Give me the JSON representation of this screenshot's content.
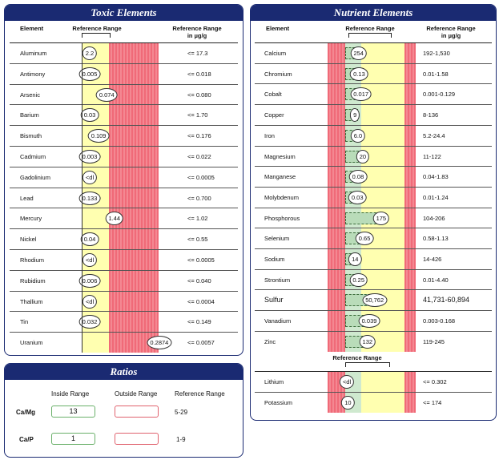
{
  "toxic": {
    "title": "Toxic Elements",
    "col_element": "Element",
    "col_range": "Reference Range",
    "col_ref": "Reference Range",
    "col_ref_unit": "in µg/g",
    "rows": [
      {
        "name": "Aluminum",
        "value": "2.2",
        "ref": "<= 17.3",
        "pos": 0.05
      },
      {
        "name": "Antimony",
        "value": "0.005",
        "ref": "<= 0.018",
        "pos": 0.08
      },
      {
        "name": "Arsenic",
        "value": "0.074",
        "ref": "<= 0.080",
        "pos": 0.92
      },
      {
        "name": "Barium",
        "value": "0.03",
        "ref": "<= 1.70",
        "pos": 0.0
      },
      {
        "name": "Bismuth",
        "value": "0.109",
        "ref": "<= 0.176",
        "pos": 0.62
      },
      {
        "name": "Cadmium",
        "value": "0.003",
        "ref": "<= 0.022",
        "pos": 0.14
      },
      {
        "name": "Gadolinium",
        "value": "<dl",
        "ref": "<= 0.0005",
        "pos": 0.0
      },
      {
        "name": "Lead",
        "value": "0.133",
        "ref": "<= 0.700",
        "pos": 0.2
      },
      {
        "name": "Mercury",
        "value": "1.44",
        "ref": "<= 1.02",
        "pos": 1.2
      },
      {
        "name": "Nickel",
        "value": "0.04",
        "ref": "<= 0.55",
        "pos": 0.05
      },
      {
        "name": "Rhodium",
        "value": "<dl",
        "ref": "<= 0.0005",
        "pos": 0.0
      },
      {
        "name": "Rubidium",
        "value": "0.006",
        "ref": "<= 0.040",
        "pos": 0.15
      },
      {
        "name": "Thallium",
        "value": "<dl",
        "ref": "<= 0.0004",
        "pos": 0.0
      },
      {
        "name": "Tin",
        "value": "0.032",
        "ref": "<= 0.149",
        "pos": 0.22
      },
      {
        "name": "Uranium",
        "value": "0.2874",
        "ref": "<= 0.0057",
        "pos": 3.0
      }
    ]
  },
  "nutrient": {
    "title": "Nutrient Elements",
    "col_element": "Element",
    "col_range": "Reference Range",
    "col_ref": "Reference Range",
    "col_ref_unit": "in µg/g",
    "rows": [
      {
        "name": "Calcium",
        "value": "254",
        "ref": "192-1,530",
        "pos": 0.28
      },
      {
        "name": "Chromium",
        "value": "0.13",
        "ref": "0.01-1.58",
        "pos": 0.29
      },
      {
        "name": "Cobalt",
        "value": "0.017",
        "ref": "0.001-0.129",
        "pos": 0.32
      },
      {
        "name": "Copper",
        "value": "9",
        "ref": "8-136",
        "pos": 0.22
      },
      {
        "name": "Iron",
        "value": "6.0",
        "ref": "5.2-24.4",
        "pos": 0.27
      },
      {
        "name": "Magnesium",
        "value": "20",
        "ref": "11-122",
        "pos": 0.35
      },
      {
        "name": "Manganese",
        "value": "0.08",
        "ref": "0.04-1.83",
        "pos": 0.27
      },
      {
        "name": "Molybdenum",
        "value": "0.03",
        "ref": "0.01-1.24",
        "pos": 0.26
      },
      {
        "name": "Phosphorous",
        "value": "175",
        "ref": "104-206",
        "pos": 0.66
      },
      {
        "name": "Selenium",
        "value": "0.65",
        "ref": "0.58-1.13",
        "pos": 0.38
      },
      {
        "name": "Sodium",
        "value": "14",
        "ref": "14-426",
        "pos": 0.22
      },
      {
        "name": "Strontium",
        "value": "0.25",
        "ref": "0.01-4.40",
        "pos": 0.28
      },
      {
        "name": "Sulfur",
        "value": "50,762",
        "ref": "41,731-60,894",
        "pos": 0.55
      },
      {
        "name": "Vanadium",
        "value": "0.039",
        "ref": "0.003-0.168",
        "pos": 0.46
      },
      {
        "name": "Zinc",
        "value": "132",
        "ref": "119-245",
        "pos": 0.43
      }
    ],
    "extra_range_label": "Reference Range",
    "extra_rows": [
      {
        "name": "Lithium",
        "value": "<dl",
        "ref": "<= 0.302",
        "pos": 0.0
      },
      {
        "name": "Potassium",
        "value": "10",
        "ref": "<= 174",
        "pos": 0.1
      }
    ]
  },
  "ratios": {
    "title": "Ratios",
    "col_inside": "Inside Range",
    "col_outside": "Outside Range",
    "col_ref": "Reference Range",
    "rows": [
      {
        "name": "Ca/Mg",
        "value": "13",
        "range": "5-29"
      },
      {
        "name": "Ca/P",
        "value": "1",
        "range": "1-9"
      }
    ]
  }
}
